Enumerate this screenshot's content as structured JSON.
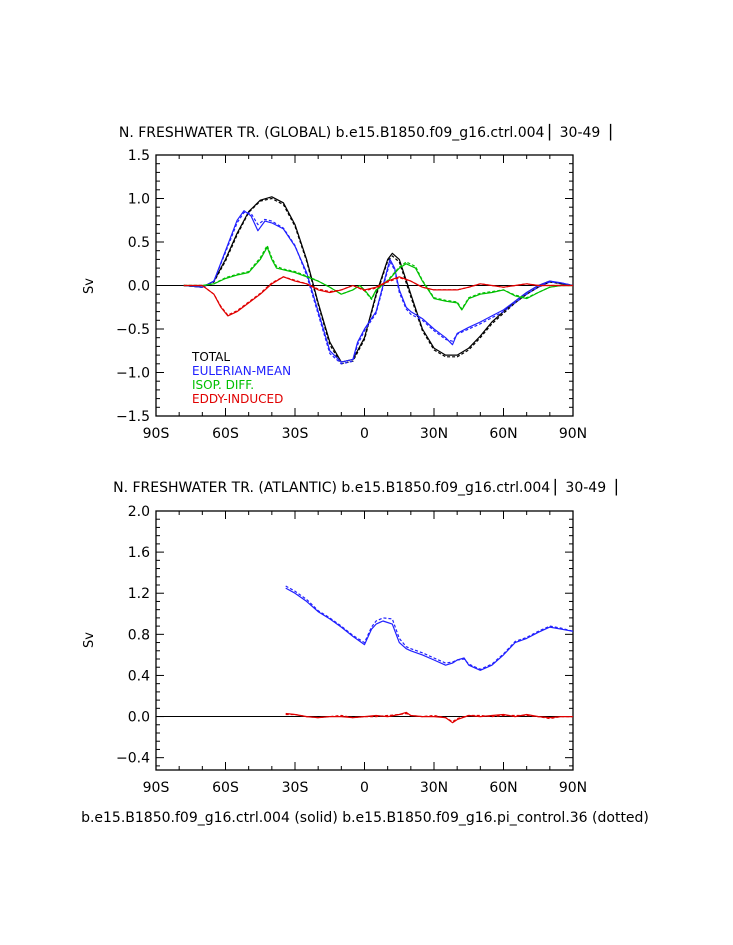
{
  "colors": {
    "total": "#000000",
    "eulerian_mean": "#2020ff",
    "isop_diff": "#00c000",
    "eddy_induced": "#e00000",
    "zero_line": "#000000"
  },
  "footer": "b.e15.B1850.f09_g16.ctrl.004 (solid) b.e15.B1850.f09_g16.pi_control.36 (dotted)",
  "chart_data": [
    {
      "type": "line",
      "title": "N. FRESHWATER TR. (GLOBAL) b.e15.B1850.f09_g16.ctrl.004 ▏30-49▕",
      "ylabel": "Sv",
      "xlabel": "",
      "xlim": [
        -90,
        90
      ],
      "ylim": [
        -1.5,
        1.5
      ],
      "xticks": [
        -90,
        -60,
        -30,
        0,
        30,
        60,
        90
      ],
      "xticklabels": [
        "90S",
        "60S",
        "30S",
        "0",
        "30N",
        "60N",
        "90N"
      ],
      "yticks": [
        -1.5,
        -1.0,
        -0.5,
        0.0,
        0.5,
        1.0,
        1.5
      ],
      "yticklabels": [
        "−1.5",
        "−1.0",
        "−0.5",
        "0.0",
        "0.5",
        "1.0",
        "1.5"
      ],
      "legend": [
        "TOTAL",
        "EULERIAN-MEAN",
        "ISOP. DIFF.",
        "EDDY-INDUCED"
      ],
      "legend_position": "bottom-left",
      "series": [
        {
          "name": "TOTAL",
          "color": "#000000",
          "style": "solid",
          "x": [
            -78,
            -70,
            -65,
            -60,
            -55,
            -50,
            -45,
            -40,
            -35,
            -30,
            -25,
            -20,
            -15,
            -10,
            -5,
            0,
            5,
            10,
            12,
            15,
            20,
            25,
            30,
            35,
            40,
            45,
            50,
            55,
            60,
            65,
            70,
            75,
            80,
            85,
            90
          ],
          "y": [
            0,
            -0.02,
            0.05,
            0.3,
            0.6,
            0.85,
            0.98,
            1.02,
            0.95,
            0.7,
            0.3,
            -0.2,
            -0.65,
            -0.88,
            -0.85,
            -0.6,
            -0.1,
            0.3,
            0.37,
            0.3,
            -0.1,
            -0.5,
            -0.72,
            -0.8,
            -0.8,
            -0.72,
            -0.58,
            -0.42,
            -0.3,
            -0.18,
            -0.08,
            0,
            0.05,
            0.02,
            0
          ]
        },
        {
          "name": "TOTAL (dotted)",
          "color": "#000000",
          "style": "dotted",
          "x": [
            -78,
            -70,
            -65,
            -60,
            -55,
            -50,
            -45,
            -40,
            -35,
            -30,
            -25,
            -20,
            -15,
            -10,
            -5,
            0,
            5,
            10,
            12,
            15,
            20,
            25,
            30,
            35,
            40,
            45,
            50,
            55,
            60,
            65,
            70,
            75,
            80,
            85,
            90
          ],
          "y": [
            0,
            -0.02,
            0.04,
            0.28,
            0.58,
            0.84,
            0.97,
            1.0,
            0.93,
            0.68,
            0.28,
            -0.22,
            -0.68,
            -0.9,
            -0.87,
            -0.62,
            -0.12,
            0.28,
            0.34,
            0.27,
            -0.13,
            -0.52,
            -0.74,
            -0.82,
            -0.82,
            -0.74,
            -0.6,
            -0.44,
            -0.32,
            -0.2,
            -0.1,
            -0.02,
            0.04,
            0.02,
            0
          ]
        },
        {
          "name": "EULERIAN-MEAN",
          "color": "#2020ff",
          "style": "solid",
          "x": [
            -78,
            -70,
            -65,
            -60,
            -55,
            -52,
            -49,
            -46,
            -43,
            -40,
            -35,
            -30,
            -25,
            -20,
            -15,
            -10,
            -5,
            -3,
            0,
            5,
            8,
            11,
            13,
            15,
            18,
            20,
            25,
            30,
            35,
            38,
            40,
            45,
            50,
            55,
            60,
            65,
            70,
            75,
            80,
            85,
            90
          ],
          "y": [
            0,
            -0.02,
            0.05,
            0.4,
            0.75,
            0.86,
            0.8,
            0.63,
            0.74,
            0.72,
            0.65,
            0.45,
            0.15,
            -0.3,
            -0.75,
            -0.88,
            -0.85,
            -0.65,
            -0.5,
            -0.3,
            0.0,
            0.3,
            0.2,
            -0.05,
            -0.25,
            -0.3,
            -0.38,
            -0.5,
            -0.6,
            -0.68,
            -0.55,
            -0.48,
            -0.42,
            -0.35,
            -0.28,
            -0.18,
            -0.08,
            0,
            0.05,
            0.03,
            0
          ]
        },
        {
          "name": "EULERIAN-MEAN (dotted)",
          "color": "#2020ff",
          "style": "dotted",
          "x": [
            -78,
            -70,
            -65,
            -60,
            -55,
            -52,
            -49,
            -46,
            -43,
            -40,
            -35,
            -30,
            -25,
            -20,
            -15,
            -10,
            -5,
            -3,
            0,
            5,
            8,
            11,
            13,
            15,
            18,
            20,
            25,
            30,
            35,
            38,
            40,
            45,
            50,
            55,
            60,
            65,
            70,
            75,
            80,
            85,
            90
          ],
          "y": [
            0,
            -0.02,
            0.05,
            0.38,
            0.72,
            0.84,
            0.83,
            0.7,
            0.76,
            0.74,
            0.66,
            0.46,
            0.12,
            -0.33,
            -0.78,
            -0.9,
            -0.87,
            -0.68,
            -0.52,
            -0.32,
            -0.02,
            0.27,
            0.18,
            -0.08,
            -0.27,
            -0.33,
            -0.4,
            -0.52,
            -0.62,
            -0.64,
            -0.56,
            -0.5,
            -0.44,
            -0.37,
            -0.3,
            -0.2,
            -0.1,
            -0.02,
            0.04,
            0.03,
            0
          ]
        },
        {
          "name": "ISOP. DIFF.",
          "color": "#00c000",
          "style": "solid",
          "x": [
            -78,
            -70,
            -65,
            -60,
            -55,
            -50,
            -45,
            -42,
            -40,
            -38,
            -35,
            -30,
            -25,
            -20,
            -15,
            -10,
            -5,
            -2,
            0,
            3,
            5,
            10,
            15,
            18,
            22,
            25,
            30,
            35,
            40,
            42,
            45,
            50,
            55,
            60,
            65,
            70,
            75,
            80,
            85,
            90
          ],
          "y": [
            0,
            0,
            0.02,
            0.08,
            0.12,
            0.15,
            0.3,
            0.44,
            0.3,
            0.2,
            0.18,
            0.15,
            0.1,
            0.05,
            -0.02,
            -0.1,
            -0.05,
            0.0,
            -0.05,
            -0.15,
            -0.05,
            0.05,
            0.2,
            0.25,
            0.2,
            0.05,
            -0.15,
            -0.18,
            -0.2,
            -0.28,
            -0.15,
            -0.1,
            -0.08,
            -0.05,
            -0.12,
            -0.15,
            -0.08,
            -0.02,
            0,
            0
          ]
        },
        {
          "name": "ISOP. DIFF. (dotted)",
          "color": "#00c000",
          "style": "dotted",
          "x": [
            -78,
            -70,
            -65,
            -60,
            -55,
            -50,
            -45,
            -42,
            -40,
            -38,
            -35,
            -30,
            -25,
            -20,
            -15,
            -10,
            -5,
            -2,
            0,
            3,
            5,
            10,
            15,
            18,
            22,
            25,
            30,
            35,
            40,
            42,
            45,
            50,
            55,
            60,
            65,
            70,
            75,
            80,
            85,
            90
          ],
          "y": [
            0,
            0,
            0.02,
            0.09,
            0.13,
            0.16,
            0.32,
            0.46,
            0.32,
            0.22,
            0.19,
            0.16,
            0.11,
            0.05,
            -0.02,
            -0.1,
            -0.05,
            0.0,
            -0.06,
            -0.16,
            -0.06,
            0.06,
            0.21,
            0.27,
            0.22,
            0.06,
            -0.14,
            -0.17,
            -0.19,
            -0.27,
            -0.14,
            -0.09,
            -0.07,
            -0.05,
            -0.11,
            -0.14,
            -0.08,
            -0.02,
            0,
            0
          ]
        },
        {
          "name": "EDDY-INDUCED",
          "color": "#e00000",
          "style": "solid",
          "x": [
            -78,
            -70,
            -65,
            -62,
            -59,
            -55,
            -50,
            -45,
            -40,
            -35,
            -30,
            -25,
            -20,
            -15,
            -10,
            -5,
            0,
            5,
            10,
            15,
            20,
            25,
            30,
            35,
            40,
            45,
            50,
            55,
            60,
            65,
            70,
            75,
            80,
            85,
            90
          ],
          "y": [
            0,
            0,
            -0.1,
            -0.25,
            -0.35,
            -0.3,
            -0.2,
            -0.1,
            0.02,
            0.1,
            0.05,
            0.02,
            -0.05,
            -0.08,
            -0.05,
            0.0,
            -0.05,
            -0.02,
            0.05,
            0.1,
            0.05,
            -0.02,
            -0.05,
            -0.05,
            -0.05,
            -0.02,
            0.02,
            0.0,
            -0.02,
            0.0,
            0.02,
            0.0,
            0.0,
            0.0,
            0
          ]
        },
        {
          "name": "EDDY-INDUCED (dotted)",
          "color": "#e00000",
          "style": "dotted",
          "x": [
            -78,
            -70,
            -65,
            -62,
            -59,
            -55,
            -50,
            -45,
            -40,
            -35,
            -30,
            -25,
            -20,
            -15,
            -10,
            -5,
            0,
            5,
            10,
            15,
            20,
            25,
            30,
            35,
            40,
            45,
            50,
            55,
            60,
            65,
            70,
            75,
            80,
            85,
            90
          ],
          "y": [
            0,
            0,
            -0.1,
            -0.24,
            -0.34,
            -0.29,
            -0.19,
            -0.09,
            0.03,
            0.1,
            0.06,
            0.02,
            -0.04,
            -0.07,
            -0.05,
            0.0,
            -0.06,
            -0.03,
            0.04,
            0.09,
            0.05,
            -0.02,
            -0.05,
            -0.05,
            -0.05,
            -0.02,
            0.02,
            0.0,
            -0.02,
            0.0,
            0.02,
            0.0,
            0.0,
            0.0,
            0
          ]
        }
      ]
    },
    {
      "type": "line",
      "title": "N. FRESHWATER TR. (ATLANTIC) b.e15.B1850.f09_g16.ctrl.004 ▏30-49▕",
      "ylabel": "Sv",
      "xlabel": "",
      "xlim": [
        -90,
        90
      ],
      "ylim": [
        -0.52,
        2.0
      ],
      "xticks": [
        -90,
        -60,
        -30,
        0,
        30,
        60,
        90
      ],
      "xticklabels": [
        "90S",
        "60S",
        "30S",
        "0",
        "30N",
        "60N",
        "90N"
      ],
      "yticks": [
        -0.4,
        0.0,
        0.4,
        0.8,
        1.2,
        1.6,
        2.0
      ],
      "yticklabels": [
        "−0.4",
        "0.0",
        "0.4",
        "0.8",
        "1.2",
        "1.6",
        "2.0"
      ],
      "series": [
        {
          "name": "EULERIAN-MEAN",
          "color": "#2020ff",
          "style": "solid",
          "x": [
            -34,
            -30,
            -25,
            -20,
            -15,
            -10,
            -5,
            0,
            3,
            5,
            8,
            12,
            15,
            18,
            20,
            25,
            30,
            35,
            38,
            40,
            43,
            45,
            50,
            55,
            60,
            65,
            70,
            75,
            80,
            85,
            90
          ],
          "y": [
            1.25,
            1.2,
            1.12,
            1.02,
            0.95,
            0.87,
            0.78,
            0.7,
            0.85,
            0.9,
            0.93,
            0.9,
            0.72,
            0.66,
            0.64,
            0.6,
            0.55,
            0.5,
            0.52,
            0.55,
            0.57,
            0.5,
            0.45,
            0.5,
            0.6,
            0.72,
            0.76,
            0.82,
            0.87,
            0.85,
            0.83
          ]
        },
        {
          "name": "EULERIAN-MEAN (dotted)",
          "color": "#2020ff",
          "style": "dotted",
          "x": [
            -34,
            -30,
            -25,
            -20,
            -15,
            -10,
            -5,
            0,
            3,
            5,
            8,
            12,
            15,
            18,
            20,
            25,
            30,
            35,
            38,
            40,
            43,
            45,
            50,
            55,
            60,
            65,
            70,
            75,
            80,
            85,
            90
          ],
          "y": [
            1.27,
            1.22,
            1.14,
            1.03,
            0.96,
            0.88,
            0.79,
            0.72,
            0.87,
            0.93,
            0.96,
            0.95,
            0.76,
            0.68,
            0.66,
            0.62,
            0.57,
            0.52,
            0.53,
            0.55,
            0.56,
            0.51,
            0.46,
            0.51,
            0.61,
            0.73,
            0.77,
            0.83,
            0.88,
            0.86,
            0.83
          ]
        },
        {
          "name": "EDDY-INDUCED",
          "color": "#e00000",
          "style": "solid",
          "x": [
            -34,
            -30,
            -25,
            -20,
            -15,
            -10,
            -5,
            0,
            5,
            10,
            15,
            18,
            20,
            25,
            30,
            35,
            38,
            40,
            45,
            50,
            55,
            60,
            65,
            70,
            75,
            80,
            85,
            90
          ],
          "y": [
            0.03,
            0.02,
            0.0,
            -0.01,
            0.0,
            0.0,
            -0.01,
            0.0,
            0.01,
            0.0,
            0.02,
            0.04,
            0.01,
            0.0,
            0.0,
            -0.01,
            -0.06,
            -0.03,
            0.01,
            0.0,
            0.01,
            0.02,
            0.0,
            0.02,
            0.0,
            -0.01,
            0.0,
            0.0
          ]
        },
        {
          "name": "EDDY-INDUCED (dotted)",
          "color": "#e00000",
          "style": "dotted",
          "x": [
            -34,
            -30,
            -25,
            -20,
            -15,
            -10,
            -5,
            0,
            5,
            10,
            15,
            18,
            20,
            25,
            30,
            35,
            38,
            40,
            45,
            50,
            55,
            60,
            65,
            70,
            75,
            80,
            85,
            90
          ],
          "y": [
            0.02,
            0.02,
            0.0,
            -0.01,
            0.0,
            0.01,
            -0.01,
            0.0,
            0.0,
            0.01,
            0.02,
            0.03,
            0.01,
            0.0,
            0.01,
            -0.01,
            -0.05,
            -0.02,
            0.01,
            0.01,
            0.0,
            0.01,
            0.01,
            0.01,
            0.0,
            -0.02,
            0.0,
            0.0
          ]
        }
      ]
    }
  ]
}
